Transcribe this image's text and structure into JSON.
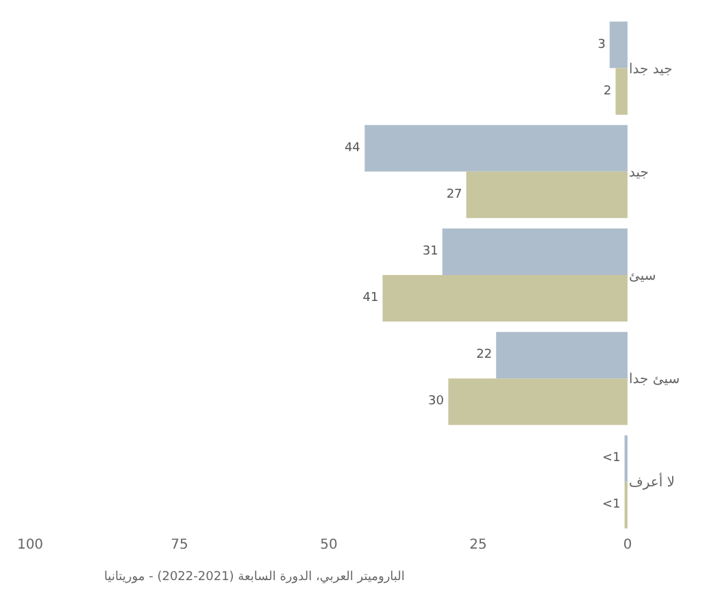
{
  "chart_data": {
    "type": "bar",
    "orientation": "horizontal",
    "categories": [
      "جيد جدا",
      "جيد",
      "سيئ",
      "سيئ جدا",
      "لا أعرف"
    ],
    "series": [
      {
        "color": "#aebdcc",
        "values": [
          3,
          44,
          31,
          22,
          0.5
        ],
        "value_labels": [
          "3",
          "44",
          "31",
          "22",
          "<1"
        ]
      },
      {
        "color": "#c8c69f",
        "values": [
          2,
          27,
          41,
          30,
          0.5
        ],
        "value_labels": [
          "2",
          "27",
          "41",
          "30",
          "<1"
        ]
      }
    ],
    "xlim": [
      100,
      0
    ],
    "xticks": [
      0,
      25,
      50,
      75,
      100
    ],
    "grid": false,
    "annotations": [
      "الباروميتر العربي، الدورة السابعة (2021-2022) - موريتانيا"
    ]
  }
}
